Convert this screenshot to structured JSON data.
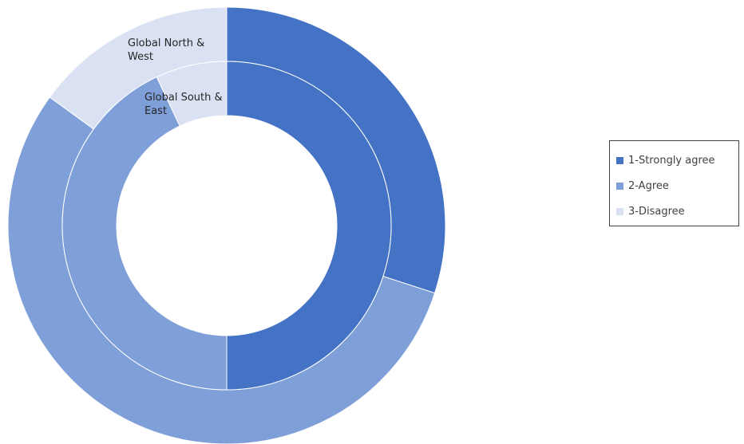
{
  "chart_data": {
    "type": "doughnut",
    "categories": [
      "1-Strongly agree",
      "2-Agree",
      "3-Disagree"
    ],
    "colors": [
      "#4472c4",
      "#7f9fd8",
      "#d9e1f2"
    ],
    "rings": [
      {
        "name": "Global North & West",
        "label_lines": [
          "Global North &",
          "West"
        ],
        "values": [
          30,
          55,
          15
        ]
      },
      {
        "name": "Global South & East",
        "label_lines": [
          "Global South &",
          "East"
        ],
        "values": [
          50,
          43,
          7
        ]
      }
    ]
  },
  "legend": {
    "placement": "right",
    "items": [
      {
        "label": "1-Strongly agree",
        "color": "#4472c4"
      },
      {
        "label": "2-Agree",
        "color": "#7f9fd8"
      },
      {
        "label": "3-Disagree",
        "color": "#d9e1f2"
      }
    ]
  }
}
